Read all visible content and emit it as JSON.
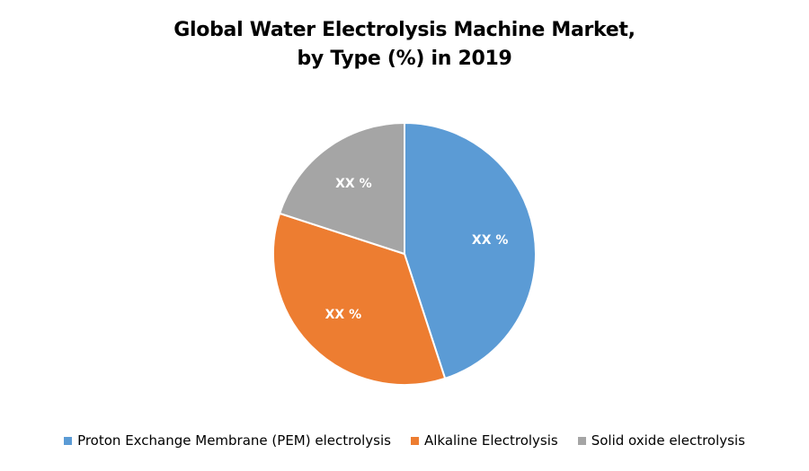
{
  "chart_data": {
    "type": "pie",
    "title_lines": [
      "Global Water Electrolysis Machine Market,",
      "by Type (%) in 2019"
    ],
    "series": [
      {
        "name": "Proton Exchange Membrane (PEM) electrolysis",
        "value": 45,
        "label": "XX %",
        "color": "#5B9BD5"
      },
      {
        "name": "Alkaline Electrolysis",
        "value": 35,
        "label": "XX %",
        "color": "#ED7D31"
      },
      {
        "name": "Solid oxide electrolysis",
        "value": 20,
        "label": "XX %",
        "color": "#A5A5A5"
      }
    ],
    "start_angle_deg": 0,
    "direction": "clockwise",
    "legend_position": "bottom"
  }
}
